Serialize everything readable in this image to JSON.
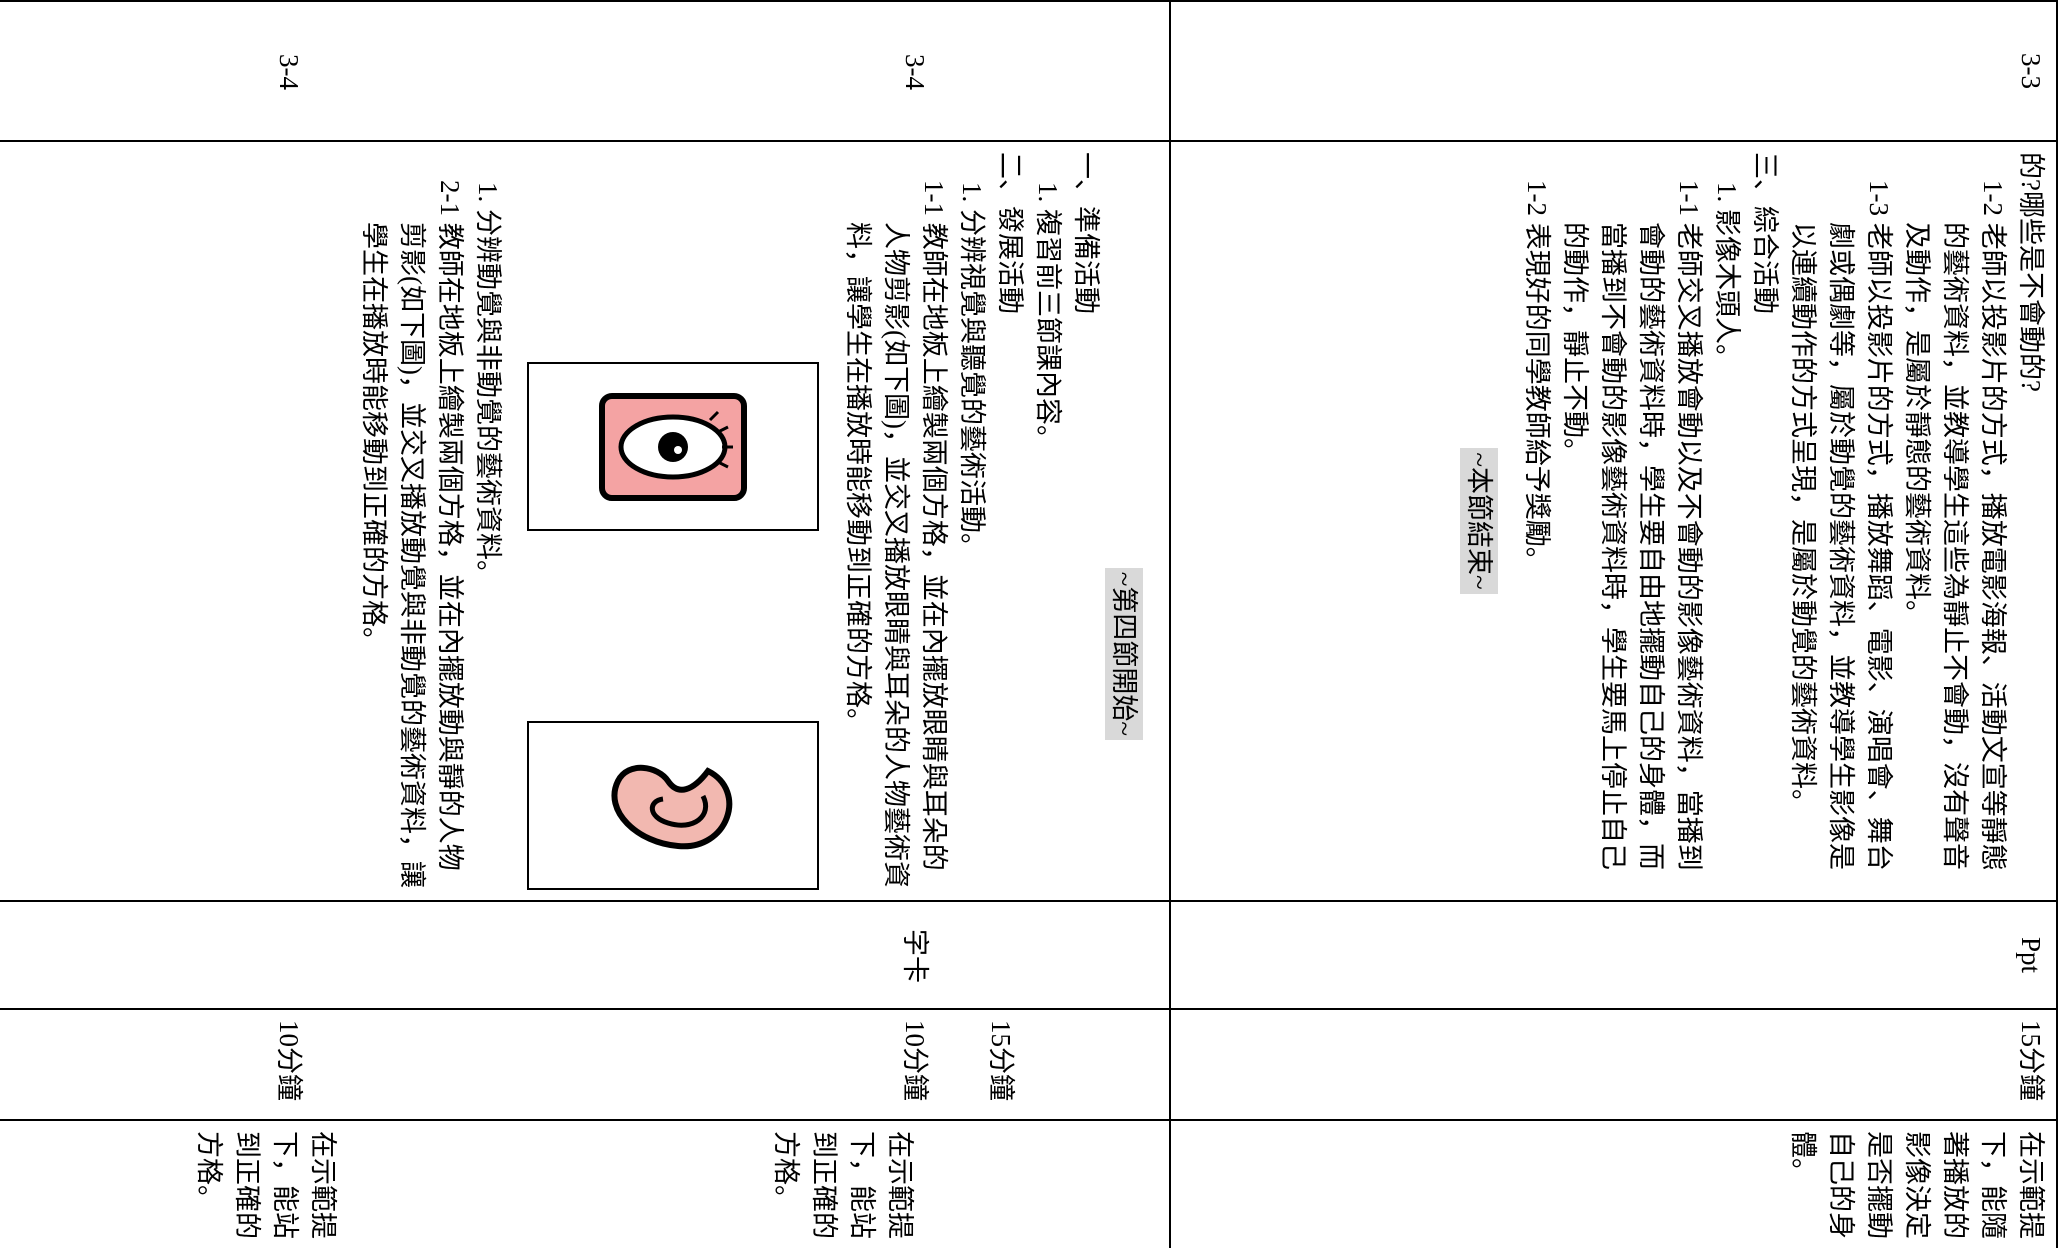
{
  "rows": [
    {
      "unit": "3-3",
      "content": [
        "的?哪些是不會動的?",
        "1-2 老師以投影片的方式，播放電影海報、活動文宣等靜態的藝術資料，並教導學生這些為靜止不會動，沒有聲音及動作，是屬於靜態的藝術資料。",
        "1-3 老師以投影片的方式，播放舞蹈、電影、演唱會、舞台劇或偶劇等，屬於動覺的藝術資料，並教導學生影像是以連續動作的方式呈現，是屬於動覺的藝術資料。",
        "三、綜合活動",
        "1. 影像木頭人。",
        "1-1 老師交叉播放會動以及不會動的影像藝術資料，當播到會動的藝術資料時，學生要自由地擺動自己的身體，而當播到不會動的影像藝術資料時，學生要馬上停止自己的動作，靜止不動。",
        "1-2 表現好的同學教師給予獎勵。",
        "~本節結束~"
      ],
      "resource": "Ppt",
      "time": "15分鐘",
      "assessment": "在示範提下，能隨著播放的影像決定是否擺動自己的身體。"
    },
    {
      "units": [
        "3-4",
        "3-4"
      ],
      "content": [
        "~第四節開始~",
        "一、準備活動",
        "1. 複習前三節課內容。",
        "二、發展活動",
        "1. 分辨視覺與聽覺的藝術活動。",
        "1-1 教師在地板上繪製兩個方格，並在內擺放眼睛與耳朵的人物剪影(如下圖)，並交叉播放眼睛與耳朵的人物藝術資料，讓學生在播放時能移動到正確的方格。",
        "1. 分辨動覺與非動覺的藝術資料。",
        "2-1 教師在地板上繪製兩個方格，並在內擺放動與靜的人物剪影(如下圖)，並交叉播放動覺與非動覺的藝術資料，讓學生在播放時能移動到正確的方格。"
      ],
      "resource": "字卡",
      "times": [
        "15分鐘",
        "10分鐘",
        "10分鐘"
      ],
      "assessments": [
        "在示範提下，能站到正確的方格。",
        "在示範提下，能站到正確的方格。"
      ]
    }
  ]
}
